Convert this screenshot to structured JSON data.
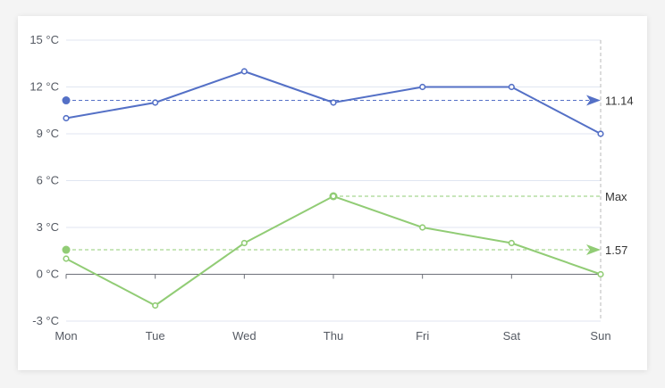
{
  "chart_data": {
    "type": "line",
    "title": "",
    "xlabel": "",
    "ylabel": "",
    "categories": [
      "Mon",
      "Tue",
      "Wed",
      "Thu",
      "Fri",
      "Sat",
      "Sun"
    ],
    "y_ticks": [
      "-3 °C",
      "0 °C",
      "3 °C",
      "6 °C",
      "9 °C",
      "12 °C",
      "15 °C"
    ],
    "ylim": [
      -3,
      15
    ],
    "grid": true,
    "series": [
      {
        "values": [
          10,
          11,
          13,
          11,
          12,
          12,
          9
        ],
        "color": "#5470c6",
        "mark_line": {
          "type": "average",
          "value": 11.14,
          "label": "11.14"
        }
      },
      {
        "values": [
          1,
          -2,
          2,
          5,
          3,
          2,
          0
        ],
        "color": "#91cc75",
        "mark_line": {
          "type": "average",
          "value": 1.57,
          "label": "1.57"
        },
        "max_line": {
          "type": "max",
          "value": 5,
          "label": "Max"
        }
      }
    ]
  }
}
